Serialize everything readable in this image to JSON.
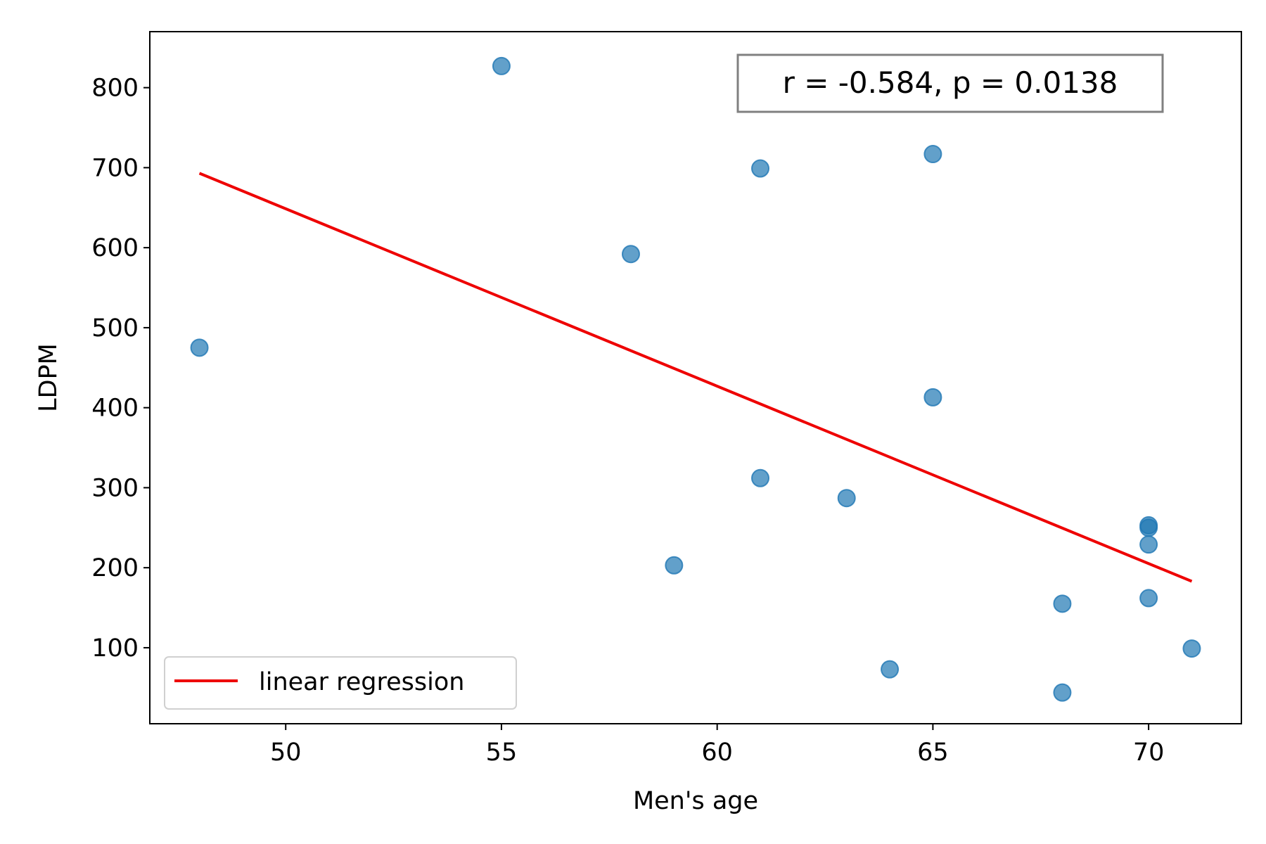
{
  "chart_data": {
    "type": "scatter",
    "xlabel": "Men's age",
    "ylabel": "LDPM",
    "xlim": [
      46.85,
      72.15
    ],
    "ylim": [
      5,
      870
    ],
    "x_ticks": [
      50,
      55,
      60,
      65,
      70
    ],
    "y_ticks": [
      100,
      200,
      300,
      400,
      500,
      600,
      700,
      800
    ],
    "grid": false,
    "points": [
      {
        "x": 48,
        "y": 475
      },
      {
        "x": 55,
        "y": 827
      },
      {
        "x": 58,
        "y": 592
      },
      {
        "x": 59,
        "y": 203
      },
      {
        "x": 61,
        "y": 699
      },
      {
        "x": 61,
        "y": 312
      },
      {
        "x": 63,
        "y": 287
      },
      {
        "x": 64,
        "y": 73
      },
      {
        "x": 65,
        "y": 717
      },
      {
        "x": 65,
        "y": 413
      },
      {
        "x": 68,
        "y": 155
      },
      {
        "x": 68,
        "y": 44
      },
      {
        "x": 70,
        "y": 253
      },
      {
        "x": 70,
        "y": 250
      },
      {
        "x": 70,
        "y": 229
      },
      {
        "x": 70,
        "y": 162
      },
      {
        "x": 71,
        "y": 99
      }
    ],
    "regression": {
      "name": "linear regression",
      "x": [
        48,
        71
      ],
      "y": [
        693,
        183
      ],
      "color": "#ee0000"
    },
    "point_color": "#1f77b4",
    "annotation": "r = -0.584, p = 0.0138",
    "legend": {
      "entries": [
        "linear regression"
      ],
      "position": "lower-left"
    }
  }
}
